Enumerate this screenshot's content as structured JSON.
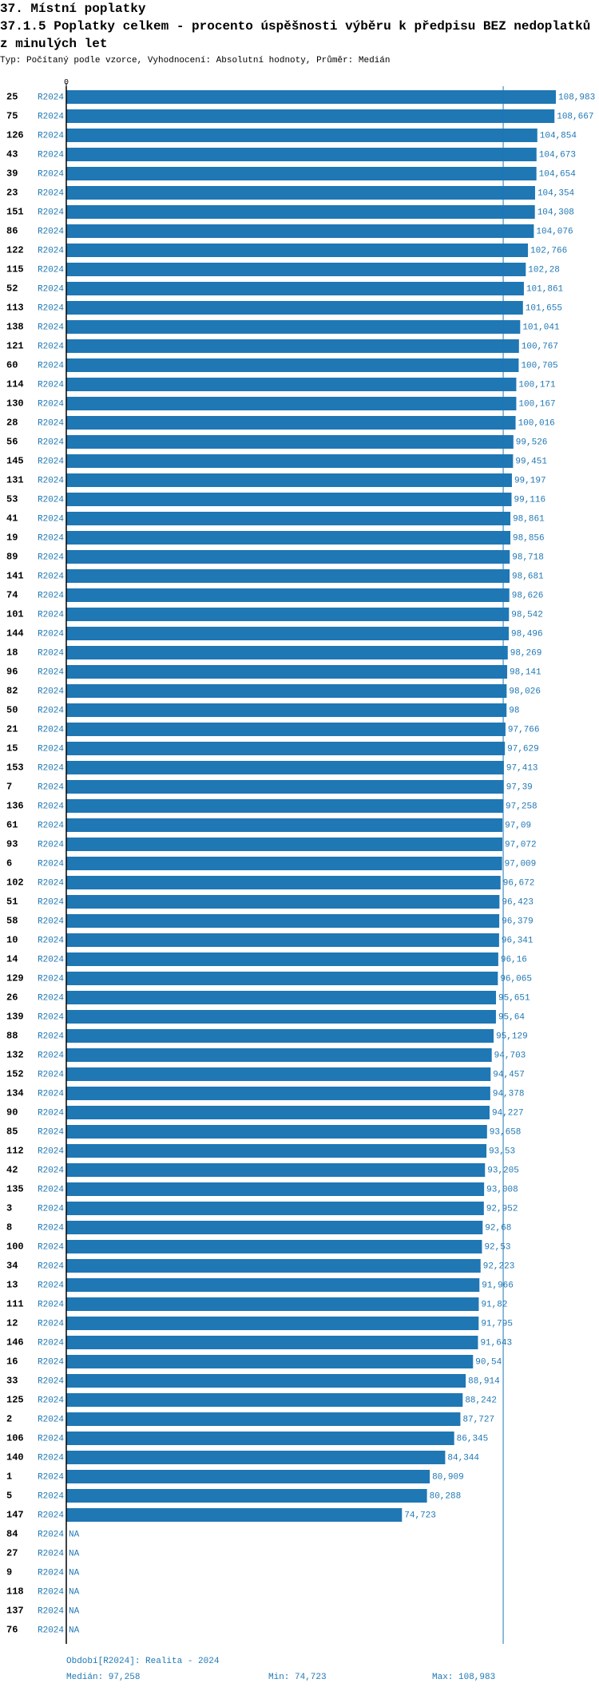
{
  "chart_data": {
    "type": "bar",
    "orientation": "horizontal",
    "title": "37. Místní poplatky",
    "subtitle": "37.1.5 Poplatky celkem - procento úspěšnosti výběru k předpisu BEZ nedoplatků z minulých let",
    "note": "Typ: Počítaný podle vzorce, Vyhodnocení: Absolutní hodnoty, Průměr: Medián",
    "period": "R2024",
    "categories": [
      "25",
      "75",
      "126",
      "43",
      "39",
      "23",
      "151",
      "86",
      "122",
      "115",
      "52",
      "113",
      "138",
      "121",
      "60",
      "114",
      "130",
      "28",
      "56",
      "145",
      "131",
      "53",
      "41",
      "19",
      "89",
      "141",
      "74",
      "101",
      "144",
      "18",
      "96",
      "82",
      "50",
      "21",
      "15",
      "153",
      "7",
      "136",
      "61",
      "93",
      "6",
      "102",
      "51",
      "58",
      "10",
      "14",
      "129",
      "26",
      "139",
      "88",
      "132",
      "152",
      "134",
      "90",
      "85",
      "112",
      "42",
      "135",
      "3",
      "8",
      "100",
      "34",
      "13",
      "111",
      "12",
      "146",
      "16",
      "33",
      "125",
      "2",
      "106",
      "140",
      "1",
      "5",
      "147",
      "84",
      "27",
      "9",
      "118",
      "137",
      "76"
    ],
    "values": [
      108.983,
      108.667,
      104.854,
      104.673,
      104.654,
      104.354,
      104.308,
      104.076,
      102.766,
      102.28,
      101.861,
      101.655,
      101.041,
      100.767,
      100.705,
      100.171,
      100.167,
      100.016,
      99.526,
      99.451,
      99.197,
      99.116,
      98.861,
      98.856,
      98.718,
      98.681,
      98.626,
      98.542,
      98.496,
      98.269,
      98.141,
      98.026,
      98,
      97.766,
      97.629,
      97.413,
      97.39,
      97.258,
      97.09,
      97.072,
      97.009,
      96.672,
      96.423,
      96.379,
      96.341,
      96.16,
      96.065,
      95.651,
      95.64,
      95.129,
      94.703,
      94.457,
      94.378,
      94.227,
      93.658,
      93.53,
      93.205,
      93.008,
      92.952,
      92.68,
      92.53,
      92.223,
      91.966,
      91.82,
      91.795,
      91.643,
      90.54,
      88.914,
      88.242,
      87.727,
      86.345,
      84.344,
      80.909,
      80.288,
      74.723,
      null,
      null,
      null,
      null,
      null,
      null
    ],
    "value_labels": [
      "108,983",
      "108,667",
      "104,854",
      "104,673",
      "104,654",
      "104,354",
      "104,308",
      "104,076",
      "102,766",
      "102,28",
      "101,861",
      "101,655",
      "101,041",
      "100,767",
      "100,705",
      "100,171",
      "100,167",
      "100,016",
      "99,526",
      "99,451",
      "99,197",
      "99,116",
      "98,861",
      "98,856",
      "98,718",
      "98,681",
      "98,626",
      "98,542",
      "98,496",
      "98,269",
      "98,141",
      "98,026",
      "98",
      "97,766",
      "97,629",
      "97,413",
      "97,39",
      "97,258",
      "97,09",
      "97,072",
      "97,009",
      "96,672",
      "96,423",
      "96,379",
      "96,341",
      "96,16",
      "96,065",
      "95,651",
      "95,64",
      "95,129",
      "94,703",
      "94,457",
      "94,378",
      "94,227",
      "93,658",
      "93,53",
      "93,205",
      "93,008",
      "92,952",
      "92,68",
      "92,53",
      "92,223",
      "91,966",
      "91,82",
      "91,795",
      "91,643",
      "90,54",
      "88,914",
      "88,242",
      "87,727",
      "86,345",
      "84,344",
      "80,909",
      "80,288",
      "74,723",
      "NA",
      "NA",
      "NA",
      "NA",
      "NA",
      "NA"
    ],
    "color": "#1f77b4",
    "xlim": [
      0,
      108.983
    ],
    "xticks": [
      0
    ],
    "median": 97.258,
    "footer": {
      "period": "Období[R2024]: Realita - 2024",
      "median": "Medián: 97,258",
      "min": "Min: 74,723",
      "max": "Max: 108,983"
    }
  }
}
